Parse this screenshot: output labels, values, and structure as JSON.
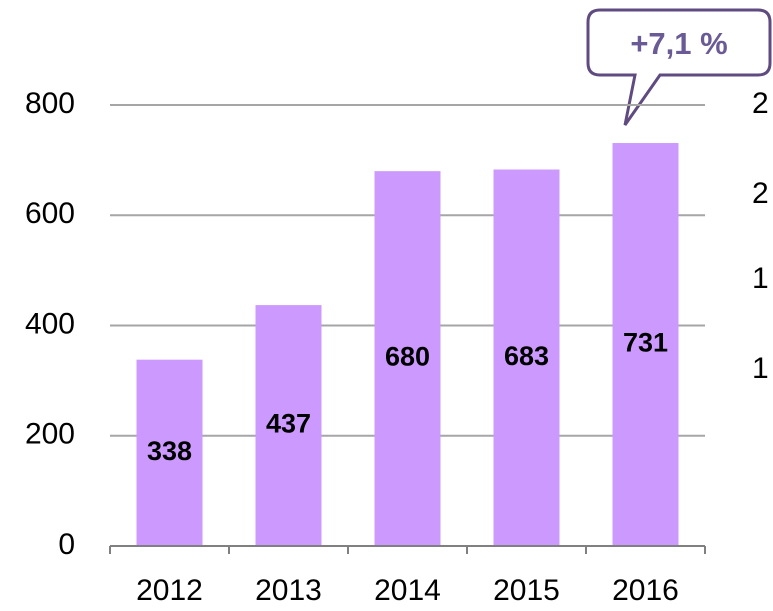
{
  "chart_data": {
    "type": "bar",
    "categories": [
      "2012",
      "2013",
      "2014",
      "2015",
      "2016"
    ],
    "values": [
      338,
      437,
      680,
      683,
      731
    ],
    "color": "#cc99ff",
    "ylim": [
      0,
      800
    ],
    "yticks": [
      0,
      200,
      400,
      600,
      800
    ],
    "grid": true,
    "annotation": "+7,1 %",
    "side_labels": [
      "2",
      "2",
      "1",
      "1"
    ]
  }
}
